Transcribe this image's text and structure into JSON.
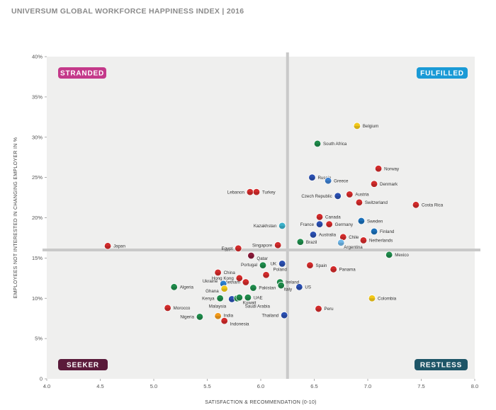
{
  "header": {
    "title": "UNIVERSUM GLOBAL WORKFORCE HAPPINESS INDEX | 2016"
  },
  "colors": {
    "plot_bg": "#efefee",
    "divider": "#c9c9c9",
    "stranded": "#c4398a",
    "fulfilled": "#1a9ad6",
    "seeker": "#5a1a3a",
    "restless": "#1e5567"
  },
  "quadrants": {
    "stranded": "STRANDED",
    "fulfilled": "FULFILLED",
    "seeker": "SEEKER",
    "restless": "RESTLESS"
  },
  "chart_data": {
    "type": "scatter",
    "title": "UNIVERSUM GLOBAL WORKFORCE HAPPINESS INDEX | 2016",
    "xlabel": "SATISFACTION & RECOMMENDATION (0-10)",
    "ylabel": "EMPLOYEES NOT INTERESTED IN CHANGING EMPLOYER IN %",
    "xlim": [
      4.0,
      8.0
    ],
    "ylim": [
      0,
      40
    ],
    "x_ticks": [
      "4.0",
      "4.5",
      "5.0",
      "5.5",
      "6.0",
      "6.5",
      "7.0",
      "7.5",
      "8.0"
    ],
    "y_ticks": [
      "0",
      "5%",
      "10%",
      "15%",
      "20%",
      "25%",
      "30%",
      "35%",
      "40%"
    ],
    "divider_x": 6.25,
    "divider_y": 16.0,
    "grid": false,
    "points": [
      {
        "label": "Belgium",
        "x": 6.9,
        "y": 31.4,
        "color": "#f2c81a"
      },
      {
        "label": "South Africa",
        "x": 6.53,
        "y": 29.2,
        "color": "#1e8a4a"
      },
      {
        "label": "Norway",
        "x": 7.1,
        "y": 26.1,
        "color": "#d12b2b"
      },
      {
        "label": "Russia",
        "x": 6.48,
        "y": 25.0,
        "color": "#2a4fb0"
      },
      {
        "label": "Greece",
        "x": 6.63,
        "y": 24.6,
        "color": "#3d7fcf"
      },
      {
        "label": "Denmark",
        "x": 7.06,
        "y": 24.2,
        "color": "#d12b2b"
      },
      {
        "label": "Lebanon",
        "x": 5.9,
        "y": 23.2,
        "color": "#d12b2b"
      },
      {
        "label": "Turkey",
        "x": 5.96,
        "y": 23.2,
        "color": "#d12b2b"
      },
      {
        "label": "Czech Republic",
        "x": 6.72,
        "y": 22.7,
        "color": "#2a4fb0"
      },
      {
        "label": "Austria",
        "x": 6.83,
        "y": 22.9,
        "color": "#d12b2b"
      },
      {
        "label": "Switzerland",
        "x": 6.92,
        "y": 21.9,
        "color": "#d12b2b"
      },
      {
        "label": "Costa Rica",
        "x": 7.45,
        "y": 21.6,
        "color": "#d12b2b"
      },
      {
        "label": "Canada",
        "x": 6.55,
        "y": 20.1,
        "color": "#d12b2b"
      },
      {
        "label": "Sweden",
        "x": 6.94,
        "y": 19.6,
        "color": "#1a6fb8"
      },
      {
        "label": "France",
        "x": 6.55,
        "y": 19.2,
        "color": "#2a4fb0"
      },
      {
        "label": "Germany",
        "x": 6.64,
        "y": 19.2,
        "color": "#d12b2b"
      },
      {
        "label": "Kazakhstan",
        "x": 6.2,
        "y": 19.0,
        "color": "#3bb0c9"
      },
      {
        "label": "Finland",
        "x": 7.06,
        "y": 18.3,
        "color": "#1a6fb8"
      },
      {
        "label": "Australia",
        "x": 6.49,
        "y": 17.9,
        "color": "#2a4fb0"
      },
      {
        "label": "Chile",
        "x": 6.77,
        "y": 17.6,
        "color": "#d12b2b"
      },
      {
        "label": "Netherlands",
        "x": 6.96,
        "y": 17.2,
        "color": "#d12b2b"
      },
      {
        "label": "Brazil",
        "x": 6.37,
        "y": 17.0,
        "color": "#1e8a4a"
      },
      {
        "label": "Argentina",
        "x": 6.75,
        "y": 16.9,
        "color": "#6fb6e6"
      },
      {
        "label": "Singapore",
        "x": 6.16,
        "y": 16.6,
        "color": "#d12b2b"
      },
      {
        "label": "Japan",
        "x": 4.57,
        "y": 16.5,
        "color": "#d12b2b"
      },
      {
        "label": "Egypt",
        "x": 5.79,
        "y": 16.2,
        "color": "#d12b2b"
      },
      {
        "label": "Qatar",
        "x": 5.91,
        "y": 15.3,
        "color": "#8a1a3a"
      },
      {
        "label": "Mexico",
        "x": 7.2,
        "y": 15.4,
        "color": "#1e8a4a"
      },
      {
        "label": "UK",
        "x": 6.2,
        "y": 14.3,
        "color": "#2a4fb0"
      },
      {
        "label": "Portugal",
        "x": 6.02,
        "y": 14.1,
        "color": "#1e8a4a"
      },
      {
        "label": "Spain",
        "x": 6.46,
        "y": 14.1,
        "color": "#d12b2b"
      },
      {
        "label": "Panama",
        "x": 6.68,
        "y": 13.6,
        "color": "#d12b2b"
      },
      {
        "label": "China",
        "x": 5.6,
        "y": 13.2,
        "color": "#d12b2b"
      },
      {
        "label": "Poland",
        "x": 6.05,
        "y": 12.9,
        "color": "#d12b2b"
      },
      {
        "label": "Hong Kong",
        "x": 5.8,
        "y": 12.5,
        "color": "#d12b2b"
      },
      {
        "label": "Vietnam",
        "x": 5.86,
        "y": 12.0,
        "color": "#d12b2b"
      },
      {
        "label": "Ireland",
        "x": 6.18,
        "y": 12.0,
        "color": "#1e8a4a"
      },
      {
        "label": "Ukraine",
        "x": 5.65,
        "y": 11.8,
        "color": "#2a7fd1"
      },
      {
        "label": "Algeria",
        "x": 5.19,
        "y": 11.4,
        "color": "#1e8a4a"
      },
      {
        "label": "US",
        "x": 6.36,
        "y": 11.4,
        "color": "#2a4fb0"
      },
      {
        "label": "Ghana",
        "x": 5.66,
        "y": 11.2,
        "color": "#f2c81a"
      },
      {
        "label": "Pakistan",
        "x": 5.93,
        "y": 11.3,
        "color": "#1e8a4a"
      },
      {
        "label": "Italy",
        "x": 6.19,
        "y": 11.6,
        "color": "#1e8a4a"
      },
      {
        "label": "Colombia",
        "x": 7.04,
        "y": 10.0,
        "color": "#f2c81a"
      },
      {
        "label": "Kenya",
        "x": 5.62,
        "y": 10.0,
        "color": "#1e8a4a"
      },
      {
        "label": "UAE",
        "x": 5.88,
        "y": 10.1,
        "color": "#1e8a4a"
      },
      {
        "label": "Malaysia",
        "x": 5.73,
        "y": 9.9,
        "color": "#2a4fb0"
      },
      {
        "label": "Kuwait",
        "x": 5.78,
        "y": 10.0,
        "color": "#1e8a4a"
      },
      {
        "label": "Saudi Arabia",
        "x": 5.8,
        "y": 10.1,
        "color": "#1e8a4a"
      },
      {
        "label": "Morocco",
        "x": 5.13,
        "y": 8.8,
        "color": "#d12b2b"
      },
      {
        "label": "Peru",
        "x": 6.54,
        "y": 8.7,
        "color": "#d12b2b"
      },
      {
        "label": "Thailand",
        "x": 6.22,
        "y": 7.9,
        "color": "#2a4fb0"
      },
      {
        "label": "Nigeria",
        "x": 5.43,
        "y": 7.7,
        "color": "#1e8a4a"
      },
      {
        "label": "India",
        "x": 5.6,
        "y": 7.8,
        "color": "#f29a1a"
      },
      {
        "label": "Indonesia",
        "x": 5.66,
        "y": 7.2,
        "color": "#d12b2b"
      }
    ]
  }
}
